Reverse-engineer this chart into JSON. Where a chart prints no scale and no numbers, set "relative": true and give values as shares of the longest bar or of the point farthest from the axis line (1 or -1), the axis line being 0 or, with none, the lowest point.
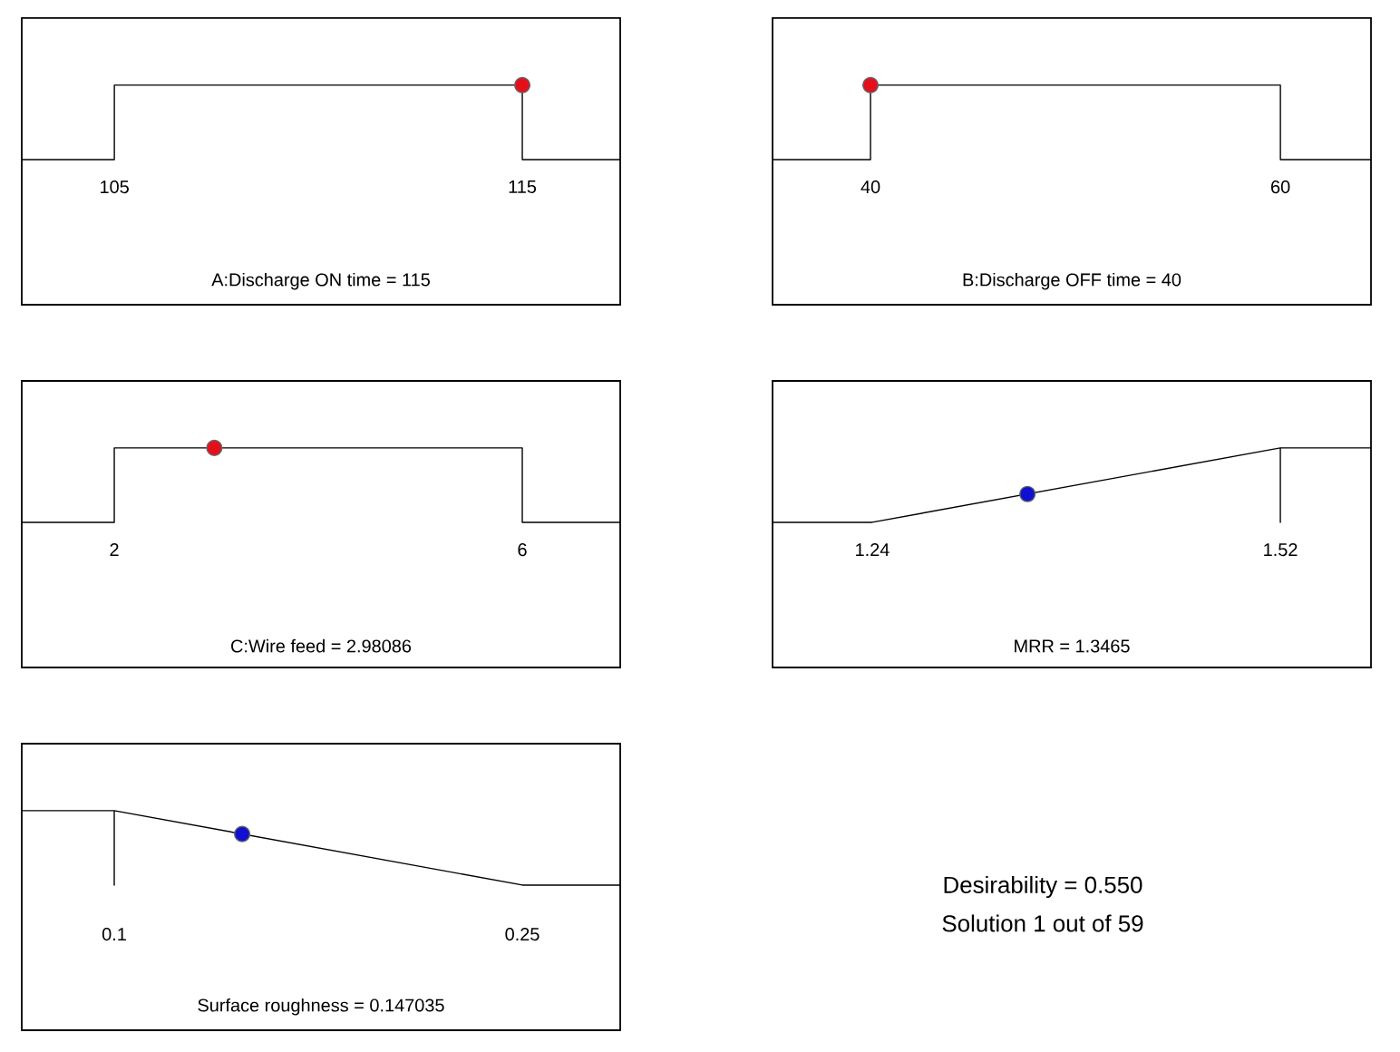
{
  "chart_data": [
    {
      "type": "line",
      "xlabel": "A:Discharge ON time = 115",
      "relative": true,
      "xlim": [
        102.73,
        117.4
      ],
      "xticks": [
        105,
        115
      ],
      "tick_labels": "x",
      "series": [
        {
          "x": [
            102.73,
            105,
            105,
            115,
            115,
            117.4
          ],
          "values": [
            0,
            0,
            1,
            1,
            0,
            0
          ],
          "color": "#000000",
          "marker": "none"
        },
        {
          "type": "scatter",
          "x": [
            115
          ],
          "values": [
            1
          ],
          "color": "#e3101c",
          "marker": "circle"
        }
      ]
    },
    {
      "type": "line",
      "xlabel": "B:Discharge OFF time  = 40",
      "relative": true,
      "xlim": [
        35.22,
        64.42
      ],
      "xticks": [
        40,
        60
      ],
      "tick_labels": "x",
      "series": [
        {
          "x": [
            35.22,
            40,
            40,
            60,
            60,
            64.42
          ],
          "values": [
            0,
            0,
            1,
            1,
            0,
            0
          ],
          "color": "#000000",
          "marker": "none"
        },
        {
          "type": "scatter",
          "x": [
            40
          ],
          "values": [
            1
          ],
          "color": "#e3101c",
          "marker": "circle"
        }
      ]
    },
    {
      "type": "line",
      "xlabel": "C:Wire feed = 2.98086",
      "relative": true,
      "xlim": [
        1.093,
        6.96
      ],
      "xticks": [
        2,
        6
      ],
      "tick_labels": "x",
      "series": [
        {
          "x": [
            1.093,
            2,
            2,
            6,
            6,
            6.96
          ],
          "values": [
            0,
            0,
            1,
            1,
            0,
            0
          ],
          "color": "#000000",
          "marker": "none"
        },
        {
          "type": "scatter",
          "x": [
            2.98086
          ],
          "values": [
            1
          ],
          "color": "#e3101c",
          "marker": "circle"
        }
      ]
    },
    {
      "type": "line",
      "xlabel": "MRR = 1.3465",
      "relative": true,
      "xlim": [
        1.1716,
        1.5822
      ],
      "xticks": [
        1.24,
        1.52
      ],
      "tick_labels": "x",
      "series": [
        {
          "x": [
            1.1716,
            1.24,
            1.52,
            1.52,
            1.52,
            1.5822
          ],
          "values": [
            0,
            0,
            1,
            0,
            1,
            1
          ],
          "color": "#000000",
          "marker": "none"
        },
        {
          "type": "scatter",
          "x": [
            1.3465
          ],
          "values": [
            0.38
          ],
          "color": "#1010d0",
          "marker": "circle"
        }
      ]
    },
    {
      "type": "line",
      "xlabel": "Surface roughness = 0.147035",
      "relative": true,
      "xlim": [
        0.066,
        0.286
      ],
      "xticks": [
        0.1,
        0.25
      ],
      "tick_labels": "x",
      "series": [
        {
          "x": [
            0.066,
            0.1,
            0.1,
            0.1,
            0.25,
            0.286
          ],
          "values": [
            1,
            1,
            0,
            1,
            0,
            0
          ],
          "color": "#000000",
          "marker": "none"
        },
        {
          "type": "scatter",
          "x": [
            0.147035
          ],
          "values": [
            0.686
          ],
          "color": "#1010d0",
          "marker": "circle"
        }
      ]
    },
    {
      "type": "other",
      "annotations": [
        "Desirability = 0.550",
        "Solution 1 out of 59"
      ]
    }
  ]
}
